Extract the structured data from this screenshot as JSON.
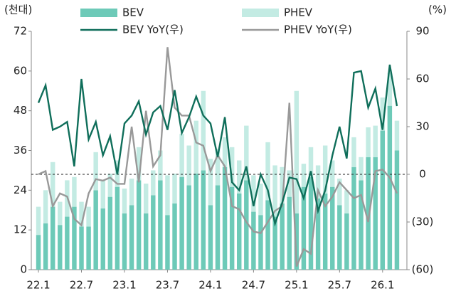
{
  "chart_data": {
    "type": "bar_line",
    "y_unit_label": "(천대)",
    "y2_unit_label": "(%)",
    "categories": [
      "22.1",
      null,
      null,
      null,
      null,
      null,
      "22.7",
      null,
      null,
      null,
      null,
      null,
      "23.1",
      null,
      null,
      null,
      null,
      null,
      "23.7",
      null,
      null,
      null,
      null,
      null,
      "24.1",
      null,
      null,
      null,
      null,
      null,
      "24.7",
      null,
      null,
      null,
      null,
      null,
      "25.1",
      null,
      null,
      null,
      null,
      null,
      "25.7",
      null,
      null,
      null,
      null,
      null,
      "26.1",
      null,
      null
    ],
    "series": [
      {
        "name": "BEV",
        "kind": "bar",
        "color": "#6dcab8",
        "values": [
          10.5,
          14,
          19,
          13.5,
          16,
          19,
          13,
          13,
          24,
          18.5,
          22,
          25,
          17,
          19.5,
          27,
          17,
          22.5,
          27,
          16.5,
          20,
          28,
          25.5,
          29,
          30,
          19.5,
          25.5,
          31,
          25,
          23,
          27,
          17.5,
          16.5,
          21,
          16,
          20,
          22,
          17,
          25,
          28,
          21.5,
          23,
          25,
          19.5,
          17,
          31,
          27,
          34,
          34,
          42,
          49.5,
          36
        ]
      },
      {
        "name": "PHEV",
        "kind": "bar",
        "color": "#c3ebe3",
        "values": [
          8.5,
          10,
          13.5,
          7,
          11,
          9,
          7.5,
          6,
          11.5,
          8.5,
          7,
          8,
          7.5,
          8,
          10,
          9,
          7.5,
          9,
          12,
          9,
          13,
          12,
          16,
          24,
          14,
          11,
          9,
          12,
          10,
          16.5,
          11,
          9.5,
          17.5,
          15.5,
          11,
          8,
          37,
          7,
          9,
          10,
          14.5,
          8,
          8,
          7,
          9,
          7,
          9,
          9.5,
          10,
          10,
          9
        ]
      },
      {
        "name": "BEV YoY(우)",
        "kind": "line",
        "axis": "y2",
        "color": "#0f6e5a",
        "values": [
          45,
          56,
          28,
          30,
          33,
          5,
          60,
          22,
          33,
          12,
          24,
          0,
          32,
          37,
          46,
          25,
          39,
          43,
          28,
          53,
          26,
          36,
          49,
          37,
          32,
          11,
          36,
          -5,
          -10,
          5,
          -20,
          0,
          -10,
          -31,
          -18,
          -2,
          -3,
          -15,
          2,
          -23,
          -10,
          12,
          30,
          10,
          64,
          65,
          42,
          54,
          28,
          69,
          43
        ]
      },
      {
        "name": "PHEV YoY(우)",
        "kind": "line",
        "axis": "y2",
        "color": "#999999",
        "values": [
          0,
          2,
          -20,
          -12,
          -14,
          -28,
          -32,
          -12,
          -3,
          -4,
          -2,
          -6,
          -6,
          30,
          -5,
          40,
          5,
          12,
          80,
          42,
          37,
          37,
          20,
          18,
          2,
          12,
          5,
          -20,
          -22,
          -30,
          -36,
          -37,
          -30,
          -23,
          -20,
          45,
          -58,
          -47,
          -50,
          -10,
          -20,
          -14,
          -5,
          -10,
          -15,
          -13,
          -30,
          2,
          3,
          -2,
          -12
        ]
      }
    ],
    "ylim": [
      0,
      72
    ],
    "yticks": [
      0,
      12,
      24,
      36,
      48,
      60,
      72
    ],
    "y2lim": [
      -60,
      90
    ],
    "y2ticks": [
      {
        "value": -60,
        "label": "(60)"
      },
      {
        "value": -30,
        "label": "(30)"
      },
      0,
      30,
      60,
      90
    ],
    "zero_line_y2": 0
  }
}
